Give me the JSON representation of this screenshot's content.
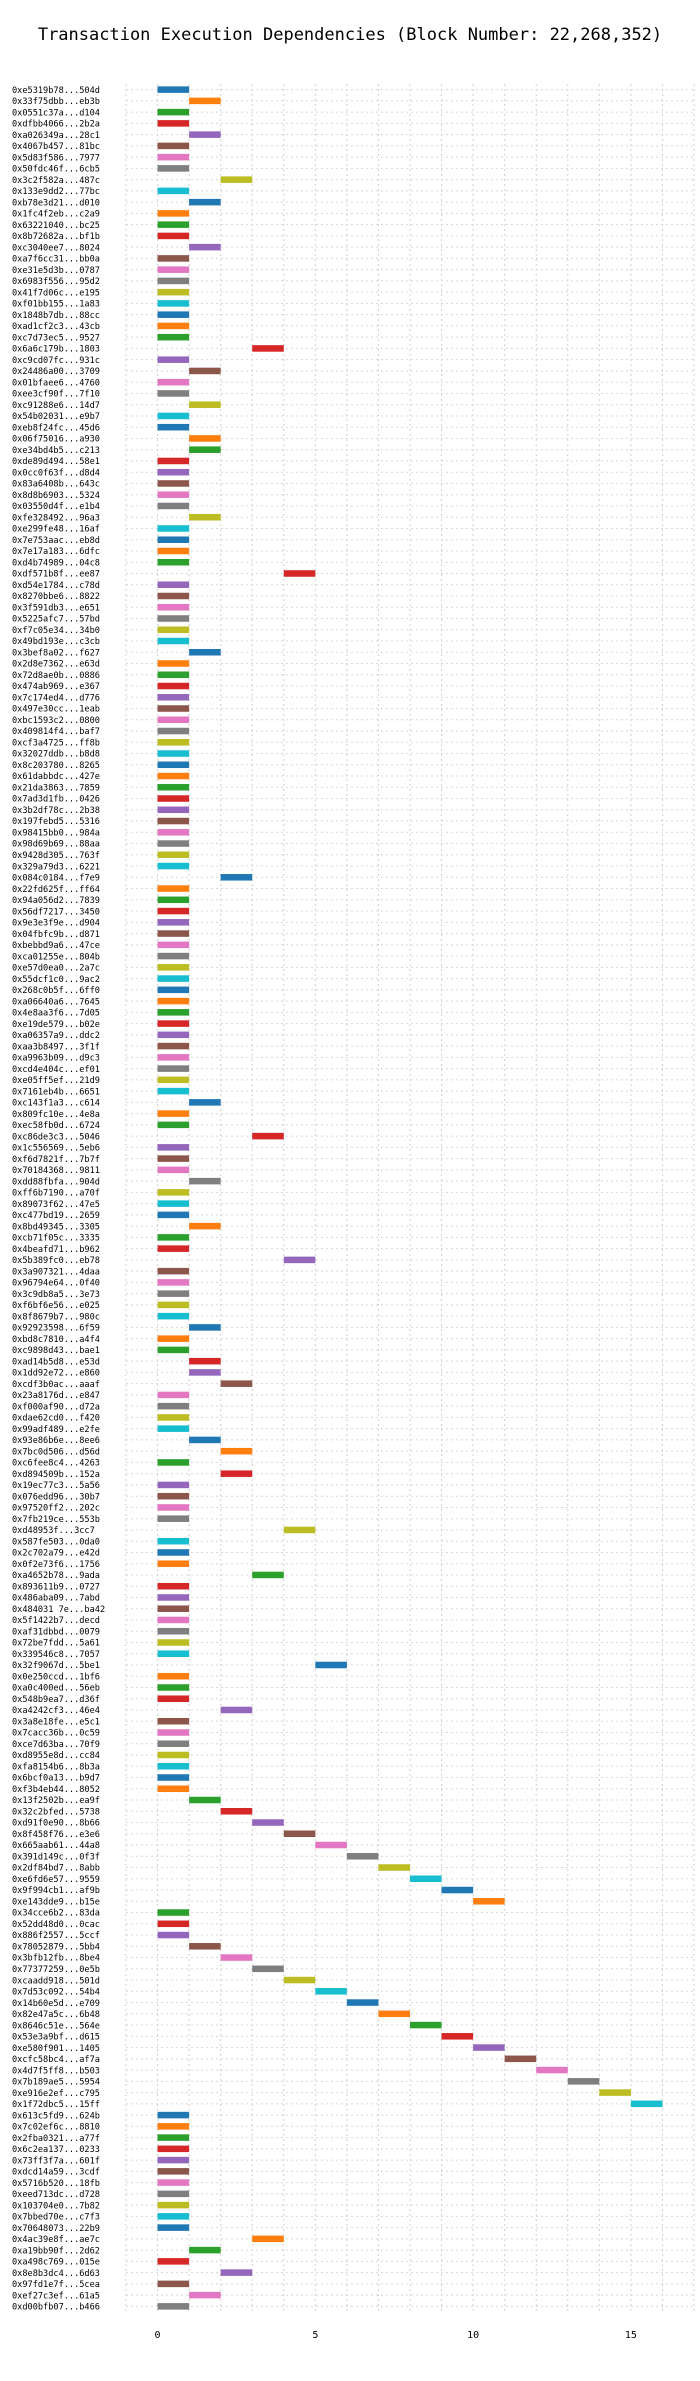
{
  "chart_data": {
    "type": "bar",
    "subtype": "gantt",
    "title": "Transaction Execution Dependencies (Block Number: 22,268,352)",
    "xlabel": "",
    "ylabel": "",
    "xlim": [
      -1,
      17
    ],
    "xticks": [
      0,
      5,
      10,
      15
    ],
    "grid": true,
    "bar_length": 1,
    "palette": [
      "#1f77b4",
      "#ff7f0e",
      "#2ca02c",
      "#d62728",
      "#9467bd",
      "#8c564b",
      "#e377c2",
      "#7f7f7f",
      "#bcbd22",
      "#17becf"
    ],
    "transactions": [
      {
        "label": "0xe5319b78...504d",
        "start": 0
      },
      {
        "label": "0x33f75dbb...eb3b",
        "start": 1
      },
      {
        "label": "0x0551c37a...d104",
        "start": 0
      },
      {
        "label": "0xdfbb4066...2b2a",
        "start": 0
      },
      {
        "label": "0xa026349a...28c1",
        "start": 1
      },
      {
        "label": "0x4067b457...81bc",
        "start": 0
      },
      {
        "label": "0x5d83f586...7977",
        "start": 0
      },
      {
        "label": "0x50fdc46f...6cb5",
        "start": 0
      },
      {
        "label": "0x3c2f582a...487c",
        "start": 2
      },
      {
        "label": "0x133e9dd2...77bc",
        "start": 0
      },
      {
        "label": "0xb78e3d21...d010",
        "start": 1
      },
      {
        "label": "0x1fc4f2eb...c2a9",
        "start": 0
      },
      {
        "label": "0x63221040...bc25",
        "start": 0
      },
      {
        "label": "0x8b72682a...bf1b",
        "start": 0
      },
      {
        "label": "0xc3040ee7...8024",
        "start": 1
      },
      {
        "label": "0xa7f6cc31...bb0a",
        "start": 0
      },
      {
        "label": "0xe31e5d3b...0787",
        "start": 0
      },
      {
        "label": "0x6983f556...95d2",
        "start": 0
      },
      {
        "label": "0x41f7d06c...e195",
        "start": 0
      },
      {
        "label": "0xf01bb155...1a83",
        "start": 0
      },
      {
        "label": "0x1848b7db...88cc",
        "start": 0
      },
      {
        "label": "0xad1cf2c3...43cb",
        "start": 0
      },
      {
        "label": "0xc7d73ec5...9527",
        "start": 0
      },
      {
        "label": "0x6a6c179b...1803",
        "start": 3
      },
      {
        "label": "0xc9cd07fc...931c",
        "start": 0
      },
      {
        "label": "0x24486a00...3709",
        "start": 1
      },
      {
        "label": "0x01bfaee6...4760",
        "start": 0
      },
      {
        "label": "0xee3cf90f...7f10",
        "start": 0
      },
      {
        "label": "0xc91288e6...14d7",
        "start": 1
      },
      {
        "label": "0x54b02031...e9b7",
        "start": 0
      },
      {
        "label": "0xeb8f24fc...45d6",
        "start": 0
      },
      {
        "label": "0x06f75016...a930",
        "start": 1
      },
      {
        "label": "0xe34bd4b5...c213",
        "start": 1
      },
      {
        "label": "0xde89d494...58e1",
        "start": 0
      },
      {
        "label": "0x0cc0f63f...d8d4",
        "start": 0
      },
      {
        "label": "0x83a6408b...643c",
        "start": 0
      },
      {
        "label": "0x8d8b6903...5324",
        "start": 0
      },
      {
        "label": "0x03550d4f...e1b4",
        "start": 0
      },
      {
        "label": "0xfe328492...96a3",
        "start": 1
      },
      {
        "label": "0xe299fe48...16af",
        "start": 0
      },
      {
        "label": "0x7e753aac...eb8d",
        "start": 0
      },
      {
        "label": "0x7e17a183...6dfc",
        "start": 0
      },
      {
        "label": "0xd4b74989...04c8",
        "start": 0
      },
      {
        "label": "0xdf571b8f...ee87",
        "start": 4
      },
      {
        "label": "0xd54e1784...c78d",
        "start": 0
      },
      {
        "label": "0x8270bbe6...8822",
        "start": 0
      },
      {
        "label": "0x3f591db3...e651",
        "start": 0
      },
      {
        "label": "0x5225afc7...57bd",
        "start": 0
      },
      {
        "label": "0xf7c05e34...34b0",
        "start": 0
      },
      {
        "label": "0x49bd193e...c3cb",
        "start": 0
      },
      {
        "label": "0x3bef8a02...f627",
        "start": 1
      },
      {
        "label": "0x2d8e7362...e63d",
        "start": 0
      },
      {
        "label": "0x72d8ae0b...0886",
        "start": 0
      },
      {
        "label": "0x474ab969...e367",
        "start": 0
      },
      {
        "label": "0x7c174ed4...d776",
        "start": 0
      },
      {
        "label": "0x497e30cc...1eab",
        "start": 0
      },
      {
        "label": "0xbc1593c2...0800",
        "start": 0
      },
      {
        "label": "0x409814f4...baf7",
        "start": 0
      },
      {
        "label": "0xcf3a4725...ff8b",
        "start": 0
      },
      {
        "label": "0x32027ddb...b8d8",
        "start": 0
      },
      {
        "label": "0x8c203780...8265",
        "start": 0
      },
      {
        "label": "0x61dabbdc...427e",
        "start": 0
      },
      {
        "label": "0x21da3863...7859",
        "start": 0
      },
      {
        "label": "0x7ad3d1fb...0426",
        "start": 0
      },
      {
        "label": "0x3b2df78c...2b38",
        "start": 0
      },
      {
        "label": "0x197febd5...5316",
        "start": 0
      },
      {
        "label": "0x98415bb0...984a",
        "start": 0
      },
      {
        "label": "0x98d69b69...88aa",
        "start": 0
      },
      {
        "label": "0x9428d305...763f",
        "start": 0
      },
      {
        "label": "0x329a79d3...6221",
        "start": 0
      },
      {
        "label": "0x084c0184...f7e9",
        "start": 2
      },
      {
        "label": "0x22fd625f...ff64",
        "start": 0
      },
      {
        "label": "0x94a056d2...7839",
        "start": 0
      },
      {
        "label": "0x56df7217...3450",
        "start": 0
      },
      {
        "label": "0x9e3e3f9e...d904",
        "start": 0
      },
      {
        "label": "0x04fbfc9b...d871",
        "start": 0
      },
      {
        "label": "0xbebbd9a6...47ce",
        "start": 0
      },
      {
        "label": "0xca01255e...804b",
        "start": 0
      },
      {
        "label": "0xe57d0ea0...2a7c",
        "start": 0
      },
      {
        "label": "0x55dcf1c0...9ac2",
        "start": 0
      },
      {
        "label": "0x268c0b5f...6ff0",
        "start": 0
      },
      {
        "label": "0xa06640a6...7645",
        "start": 0
      },
      {
        "label": "0x4e8aa3f6...7d05",
        "start": 0
      },
      {
        "label": "0xe19de579...b02e",
        "start": 0
      },
      {
        "label": "0xa06357a9...ddc2",
        "start": 0
      },
      {
        "label": "0xaa3b8497...3f1f",
        "start": 0
      },
      {
        "label": "0xa9963b09...d9c3",
        "start": 0
      },
      {
        "label": "0xcd4e404c...ef01",
        "start": 0
      },
      {
        "label": "0xe05ff5ef...21d9",
        "start": 0
      },
      {
        "label": "0x7161eb4b...6651",
        "start": 0
      },
      {
        "label": "0xc143f1a3...c614",
        "start": 1
      },
      {
        "label": "0x809fc10e...4e8a",
        "start": 0
      },
      {
        "label": "0xec58fb0d...6724",
        "start": 0
      },
      {
        "label": "0xc86de3c3...5046",
        "start": 3
      },
      {
        "label": "0x1c556569...5eb6",
        "start": 0
      },
      {
        "label": "0xf6d7821f...7b7f",
        "start": 0
      },
      {
        "label": "0x70184368...9811",
        "start": 0
      },
      {
        "label": "0xdd88fbfa...904d",
        "start": 1
      },
      {
        "label": "0xff6b7190...a70f",
        "start": 0
      },
      {
        "label": "0x89073f62...47e5",
        "start": 0
      },
      {
        "label": "0xc477bd19...2659",
        "start": 0
      },
      {
        "label": "0x8bd49345...3305",
        "start": 1
      },
      {
        "label": "0xcb71f05c...3335",
        "start": 0
      },
      {
        "label": "0x4beafd71...b962",
        "start": 0
      },
      {
        "label": "0x5b389fc0...eb78",
        "start": 4
      },
      {
        "label": "0x3a907321...4daa",
        "start": 0
      },
      {
        "label": "0x96794e64...0f40",
        "start": 0
      },
      {
        "label": "0x3c9db8a5...3e73",
        "start": 0
      },
      {
        "label": "0xf6bf6e56...e025",
        "start": 0
      },
      {
        "label": "0x8f8679b7...980c",
        "start": 0
      },
      {
        "label": "0x92923598...6f59",
        "start": 1
      },
      {
        "label": "0xbd8c7810...a4f4",
        "start": 0
      },
      {
        "label": "0xc9898d43...bae1",
        "start": 0
      },
      {
        "label": "0xad14b5d8...e53d",
        "start": 1
      },
      {
        "label": "0x1dd92e72...e860",
        "start": 1
      },
      {
        "label": "0xcdf3b0ac...aaaf",
        "start": 2
      },
      {
        "label": "0x23a8176d...e847",
        "start": 0
      },
      {
        "label": "0xf000af90...d72a",
        "start": 0
      },
      {
        "label": "0xdae62cd0...f420",
        "start": 0
      },
      {
        "label": "0x99adf489...e2fe",
        "start": 0
      },
      {
        "label": "0x93e86b6e...8ee6",
        "start": 1
      },
      {
        "label": "0x7bc0d506...d56d",
        "start": 2
      },
      {
        "label": "0xc6fee8c4...4263",
        "start": 0
      },
      {
        "label": "0xd894509b...152a",
        "start": 2
      },
      {
        "label": "0x19ec77c3...5a56",
        "start": 0
      },
      {
        "label": "0x076edd96...30b7",
        "start": 0
      },
      {
        "label": "0x97520ff2...202c",
        "start": 0
      },
      {
        "label": "0x7fb219ce...553b",
        "start": 0
      },
      {
        "label": "0xd48953f...3cc7",
        "start": 4
      },
      {
        "label": "0x587fe503...0da0",
        "start": 0
      },
      {
        "label": "0x2c702a79...e42d",
        "start": 0
      },
      {
        "label": "0x0f2e73f6...1756",
        "start": 0
      },
      {
        "label": "0xa4652b78...9ada",
        "start": 3
      },
      {
        "label": "0x893611b9...0727",
        "start": 0
      },
      {
        "label": "0x486aba09...7abd",
        "start": 0
      },
      {
        "label": "0x484031 7e...ba42",
        "start": 0
      },
      {
        "label": "0x5f1422b7...decd",
        "start": 0
      },
      {
        "label": "0xaf31dbbd...0079",
        "start": 0
      },
      {
        "label": "0x72be7fdd...5a61",
        "start": 0
      },
      {
        "label": "0x339546c8...7057",
        "start": 0
      },
      {
        "label": "0x32f9067d...5be1",
        "start": 5
      },
      {
        "label": "0x0e250ccd...1bf6",
        "start": 0
      },
      {
        "label": "0xa0c400ed...56eb",
        "start": 0
      },
      {
        "label": "0x548b9ea7...d36f",
        "start": 0
      },
      {
        "label": "0xa4242cf3...46e4",
        "start": 2
      },
      {
        "label": "0x3a8e18fe...e5c1",
        "start": 0
      },
      {
        "label": "0x7cacc36b...0c59",
        "start": 0
      },
      {
        "label": "0xce7d63ba...70f9",
        "start": 0
      },
      {
        "label": "0xd8955e8d...cc84",
        "start": 0
      },
      {
        "label": "0xfa8154b6...8b3a",
        "start": 0
      },
      {
        "label": "0x6bcf0a13...b9d7",
        "start": 0
      },
      {
        "label": "0xf3b4eb44...8052",
        "start": 0
      },
      {
        "label": "0x13f2502b...ea9f",
        "start": 1
      },
      {
        "label": "0x32c2bfed...5738",
        "start": 2
      },
      {
        "label": "0xd91f0e90...8b66",
        "start": 3
      },
      {
        "label": "0x8f458f76...e3e6",
        "start": 4
      },
      {
        "label": "0x665aab61...44a8",
        "start": 5
      },
      {
        "label": "0x391d149c...0f3f",
        "start": 6
      },
      {
        "label": "0x2df84bd7...8abb",
        "start": 7
      },
      {
        "label": "0xe6fd6e57...9559",
        "start": 8
      },
      {
        "label": "0x9f994cb1...af9b",
        "start": 9
      },
      {
        "label": "0xe143dde9...b15e",
        "start": 10
      },
      {
        "label": "0x34cce6b2...83da",
        "start": 0
      },
      {
        "label": "0x52dd48d0...0cac",
        "start": 0
      },
      {
        "label": "0x886f2557...5ccf",
        "start": 0
      },
      {
        "label": "0x78052879...5bb4",
        "start": 1
      },
      {
        "label": "0x3bfb12fb...8be4",
        "start": 2
      },
      {
        "label": "0x77377259...0e5b",
        "start": 3
      },
      {
        "label": "0xcaadd918...501d",
        "start": 4
      },
      {
        "label": "0x7d53c092...54b4",
        "start": 5
      },
      {
        "label": "0x14b60e5d...e709",
        "start": 6
      },
      {
        "label": "0x82e47a5c...6b48",
        "start": 7
      },
      {
        "label": "0x8646c51e...564e",
        "start": 8
      },
      {
        "label": "0x53e3a9bf...d615",
        "start": 9
      },
      {
        "label": "0xe580f901...1405",
        "start": 10
      },
      {
        "label": "0xcfc58bc4...af7a",
        "start": 11
      },
      {
        "label": "0x4d7f5ff8...b503",
        "start": 12
      },
      {
        "label": "0x7b189ae5...5954",
        "start": 13
      },
      {
        "label": "0xe916e2ef...c795",
        "start": 14
      },
      {
        "label": "0x1f72dbc5...15ff",
        "start": 15
      },
      {
        "label": "0x613c5fd9...624b",
        "start": 0
      },
      {
        "label": "0x7c02ef6c...8810",
        "start": 0
      },
      {
        "label": "0x2fba0321...a77f",
        "start": 0
      },
      {
        "label": "0x6c2ea137...0233",
        "start": 0
      },
      {
        "label": "0x73ff3f7a...601f",
        "start": 0
      },
      {
        "label": "0xdcd14a59...3cdf",
        "start": 0
      },
      {
        "label": "0x5716b520...18fb",
        "start": 0
      },
      {
        "label": "0xeed713dc...d728",
        "start": 0
      },
      {
        "label": "0x103704e0...7b82",
        "start": 0
      },
      {
        "label": "0x7bbed70e...c7f3",
        "start": 0
      },
      {
        "label": "0x70648073...22b9",
        "start": 0
      },
      {
        "label": "0x4ac39e8f...ae7c",
        "start": 3
      },
      {
        "label": "0xa19bb90f...2d62",
        "start": 1
      },
      {
        "label": "0xa498c769...015e",
        "start": 0
      },
      {
        "label": "0x8e8b3dc4...6d63",
        "start": 2
      },
      {
        "label": "0x97fd1e7f...5cea",
        "start": 0
      },
      {
        "label": "0xef27c3ef...61a5",
        "start": 1
      },
      {
        "label": "0xd00bfb07...b466",
        "start": 0
      }
    ]
  }
}
